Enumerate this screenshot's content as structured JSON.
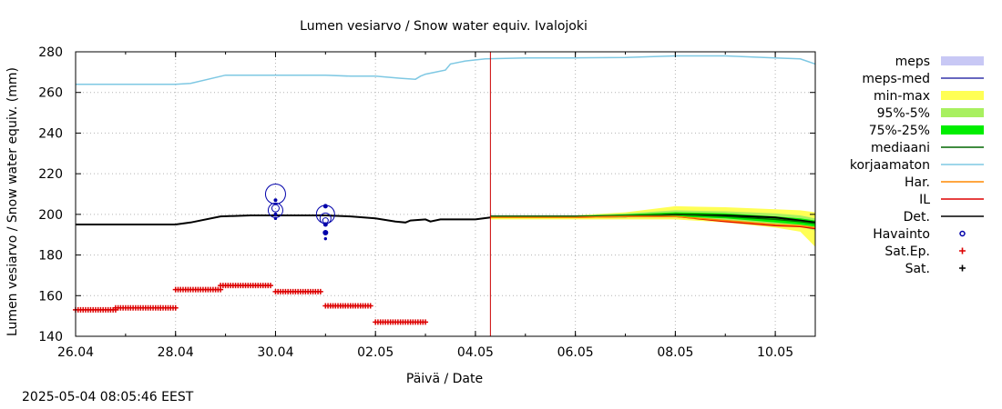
{
  "chart_data": {
    "type": "line",
    "title": "Lumen vesiarvo / Snow water equiv.  Ivalojoki",
    "xlabel": "Päivä / Date",
    "ylabel": "Lumen vesiarvo / Snow water equiv. (mm)",
    "ylim": [
      140,
      280
    ],
    "yticks": [
      140,
      160,
      180,
      200,
      220,
      240,
      260,
      280
    ],
    "xlim": [
      0,
      14.8
    ],
    "xtick_labels": [
      "26.04",
      "28.04",
      "30.04",
      "02.05",
      "04.05",
      "06.05",
      "08.05",
      "10.05"
    ],
    "xtick_pos": [
      0,
      2,
      4,
      6,
      8,
      10,
      12,
      14
    ],
    "grid": true,
    "forecast_start_x": 8.3,
    "timestamp": "2025-05-04 08:05:46 EEST",
    "legend": [
      {
        "label": "meps",
        "color": "#c8c8f5",
        "kind": "band"
      },
      {
        "label": "meps-med",
        "color": "#3333aa",
        "kind": "line"
      },
      {
        "label": "min-max",
        "color": "#ffff55",
        "kind": "band"
      },
      {
        "label": "95%-5%",
        "color": "#a8f060",
        "kind": "band"
      },
      {
        "label": "75%-25%",
        "color": "#00ee00",
        "kind": "band"
      },
      {
        "label": "mediaani",
        "color": "#006600",
        "kind": "line"
      },
      {
        "label": "korjaamaton",
        "color": "#7ec8e3",
        "kind": "line"
      },
      {
        "label": "Har.",
        "color": "#ff8800",
        "kind": "line"
      },
      {
        "label": "IL",
        "color": "#dd0000",
        "kind": "line"
      },
      {
        "label": "Det.",
        "color": "#000000",
        "kind": "line"
      },
      {
        "label": "Havainto",
        "color": "#0000aa",
        "kind": "circle"
      },
      {
        "label": "Sat.Ep.",
        "color": "#dd0000",
        "kind": "plus"
      },
      {
        "label": "Sat.",
        "color": "#000000",
        "kind": "plus"
      }
    ],
    "series": [
      {
        "name": "korjaamaton",
        "color": "#7ec8e3",
        "x": [
          0,
          0.5,
          2,
          2.3,
          3.0,
          5.0,
          5.5,
          6.0,
          6.5,
          6.8,
          6.9,
          7.0,
          7.2,
          7.4,
          7.5,
          7.8,
          8.2,
          9.0,
          10.0,
          11.0,
          12.0,
          13.0,
          14.0,
          14.5,
          14.8
        ],
        "y": [
          264,
          264,
          264,
          264.5,
          268.5,
          268.5,
          268,
          268,
          267,
          266.5,
          268,
          269,
          270,
          271,
          274,
          275.5,
          276.5,
          277,
          277,
          277.2,
          278,
          278,
          277,
          276.5,
          274
        ]
      },
      {
        "name": "Det.",
        "color": "#000000",
        "x": [
          0,
          1,
          2,
          2.3,
          2.9,
          3.5,
          5.0,
          5.5,
          6.0,
          6.4,
          6.6,
          6.7,
          7.0,
          7.1,
          7.3,
          7.6,
          8.0,
          8.3
        ],
        "y": [
          195,
          195,
          195,
          196,
          199,
          199.5,
          199.5,
          199,
          198,
          196.5,
          196,
          197,
          197.5,
          196.5,
          197.5,
          197.5,
          197.5,
          198.5
        ]
      },
      {
        "name": "Det. forecast",
        "color": "#000000",
        "x": [
          8.3,
          9.0,
          10.0,
          11.0,
          12.0,
          13.0,
          14.0,
          14.5,
          14.8
        ],
        "y": [
          199,
          199,
          199,
          199,
          200,
          199.5,
          198.5,
          197,
          196
        ]
      },
      {
        "name": "mediaani",
        "color": "#006600",
        "x": [
          8.3,
          9,
          10,
          11,
          12,
          13,
          14,
          14.5,
          14.8
        ],
        "y": [
          199,
          199,
          199,
          199.5,
          200,
          199,
          197.5,
          196.5,
          195.5
        ]
      },
      {
        "name": "IL",
        "color": "#dd0000",
        "x": [
          8.3,
          9,
          10,
          11,
          12,
          13,
          14,
          14.5,
          14.8
        ],
        "y": [
          198.5,
          198.5,
          198.5,
          199,
          199,
          196.5,
          194.5,
          194,
          193
        ]
      },
      {
        "name": "Har.",
        "color": "#ff8800",
        "x": [
          8.3,
          9,
          10,
          11,
          12,
          13,
          14,
          14.5,
          14.8
        ],
        "y": [
          198.5,
          198.5,
          198.5,
          199,
          199,
          197,
          195,
          194.5,
          193.5
        ]
      }
    ],
    "bands": [
      {
        "name": "min-max",
        "color": "#ffff55",
        "x": [
          8.3,
          9,
          10,
          11,
          12,
          13,
          14,
          14.5,
          14.8
        ],
        "upper": [
          199.5,
          199.5,
          199.5,
          201,
          204,
          203.5,
          202.5,
          202,
          201
        ],
        "lower": [
          197.5,
          197.5,
          197.5,
          197.5,
          197.5,
          196,
          193.5,
          191.5,
          184
        ]
      },
      {
        "name": "95%-5%",
        "color": "#a8f060",
        "x": [
          8.3,
          9,
          10,
          11,
          12,
          13,
          14,
          14.5,
          14.8
        ],
        "upper": [
          199.5,
          199.5,
          199.5,
          200.5,
          202,
          201.5,
          200.5,
          199.5,
          198
        ],
        "lower": [
          198.5,
          198.5,
          198.5,
          198.5,
          198.5,
          197,
          195,
          194,
          192
        ]
      },
      {
        "name": "75%-25%",
        "color": "#00ee00",
        "x": [
          8.3,
          9,
          10,
          11,
          12,
          13,
          14,
          14.5,
          14.8
        ],
        "upper": [
          199.2,
          199.2,
          199.2,
          200,
          201,
          200.5,
          199,
          198,
          197
        ],
        "lower": [
          198.8,
          198.8,
          198.8,
          199,
          199,
          198,
          196,
          195,
          194
        ]
      }
    ],
    "sat_ep": [
      {
        "x0": 0.0,
        "x1": 0.8,
        "y": 153
      },
      {
        "x0": 0.8,
        "x1": 1.7,
        "y": 154
      },
      {
        "x0": 1.7,
        "x1": 2.0,
        "y": 154
      },
      {
        "x0": 2.0,
        "x1": 2.9,
        "y": 163
      },
      {
        "x0": 2.9,
        "x1": 3.9,
        "y": 165
      },
      {
        "x0": 4.0,
        "x1": 4.9,
        "y": 162
      },
      {
        "x0": 5.0,
        "x1": 5.9,
        "y": 155
      },
      {
        "x0": 6.0,
        "x1": 7.0,
        "y": 147
      }
    ],
    "havainto": [
      {
        "x": 4.0,
        "y": 210,
        "r": 11
      },
      {
        "x": 4.0,
        "y": 202,
        "r": 8
      },
      {
        "x": 4.0,
        "y": 203,
        "r": 4
      },
      {
        "x": 4.0,
        "y": 207,
        "r": 1.5
      },
      {
        "x": 4.0,
        "y": 200,
        "r": 1.5
      },
      {
        "x": 4.0,
        "y": 198,
        "r": 1.2
      },
      {
        "x": 5.0,
        "y": 200,
        "r": 10
      },
      {
        "x": 5.0,
        "y": 198,
        "r": 6
      },
      {
        "x": 5.0,
        "y": 197,
        "r": 3
      },
      {
        "x": 5.0,
        "y": 204,
        "r": 2
      },
      {
        "x": 5.0,
        "y": 195,
        "r": 2
      },
      {
        "x": 5.0,
        "y": 191,
        "r": 2.5
      },
      {
        "x": 5.0,
        "y": 188,
        "r": 1.2
      }
    ]
  }
}
